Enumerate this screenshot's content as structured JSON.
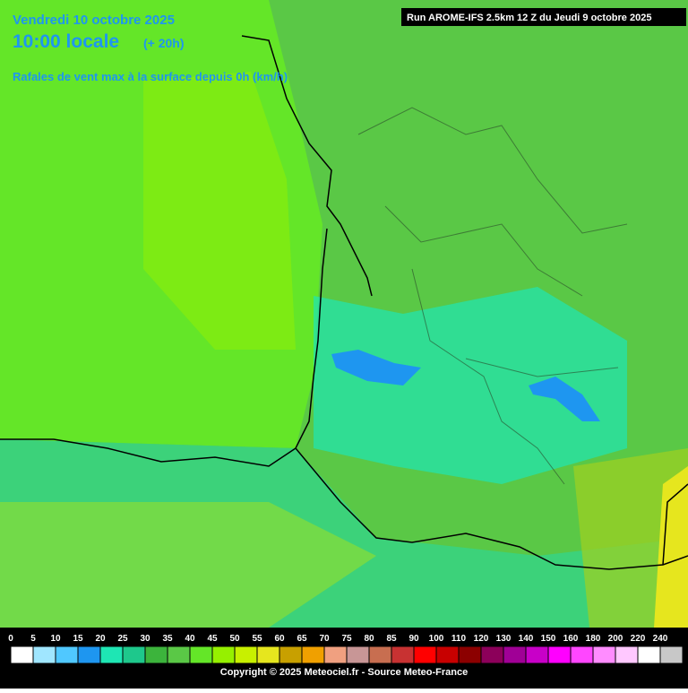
{
  "header": {
    "date": "Vendredi 10 octobre 2025",
    "time": "10:00 locale",
    "offset": "(+ 20h)",
    "subtitle": "Rafales de vent max à la surface depuis 0h (km/h)",
    "run": "Run AROME-IFS 2.5km 12 Z du Jeudi 9 octobre 2025"
  },
  "legend": {
    "values": [
      0,
      5,
      10,
      15,
      20,
      25,
      30,
      35,
      40,
      45,
      50,
      55,
      60,
      65,
      70,
      75,
      80,
      85,
      90,
      100,
      110,
      120,
      130,
      140,
      150,
      160,
      180,
      200,
      220,
      240
    ],
    "colors": [
      "#ffffff",
      "#a0e6ff",
      "#50c8ff",
      "#1e96f0",
      "#1ee6b4",
      "#1ec88c",
      "#3cb43c",
      "#5ac846",
      "#64e628",
      "#96f000",
      "#c8f000",
      "#e6e61e",
      "#c8a000",
      "#f0a000",
      "#f0a080",
      "#c89696",
      "#c86e50",
      "#c83232",
      "#ff0000",
      "#c80000",
      "#8c0000",
      "#8c005a",
      "#a00096",
      "#c800c8",
      "#ff00ff",
      "#ff46ff",
      "#ff8cff",
      "#ffc8ff",
      "#ffffff",
      "#c8c8c8"
    ]
  },
  "footer": {
    "copyright": "Copyright © 2025 Meteociel.fr - Source Meteo-France"
  }
}
